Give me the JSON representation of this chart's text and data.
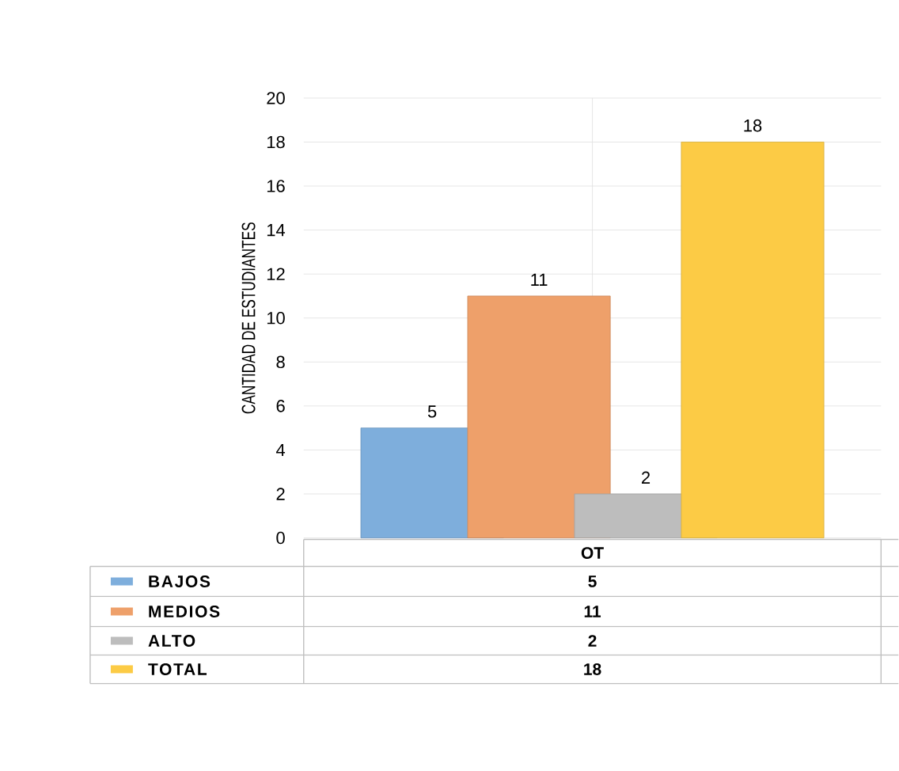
{
  "chart_data": {
    "type": "bar",
    "ylabel": "CANTIDAD DE ESTUDIANTES",
    "categories": [
      "OT"
    ],
    "series": [
      {
        "name": "BAJOS",
        "color": "#7eaedc",
        "values": [
          5
        ],
        "value_labels": [
          "5"
        ]
      },
      {
        "name": "MEDIOS",
        "color": "#eea06a",
        "values": [
          11
        ],
        "value_labels": [
          "11"
        ]
      },
      {
        "name": "ALTO",
        "color": "#bdbdbd",
        "values": [
          2
        ],
        "value_labels": [
          "2"
        ]
      },
      {
        "name": "TOTAL",
        "color": "#fccb45",
        "values": [
          18
        ],
        "value_labels": [
          "18"
        ]
      }
    ],
    "ylim": [
      0,
      20
    ],
    "yticks": [
      0,
      2,
      4,
      6,
      8,
      10,
      12,
      14,
      16,
      18,
      20
    ],
    "annotations": [
      "5",
      "11",
      "2",
      "18"
    ],
    "grid": true,
    "legend": "bottom"
  }
}
